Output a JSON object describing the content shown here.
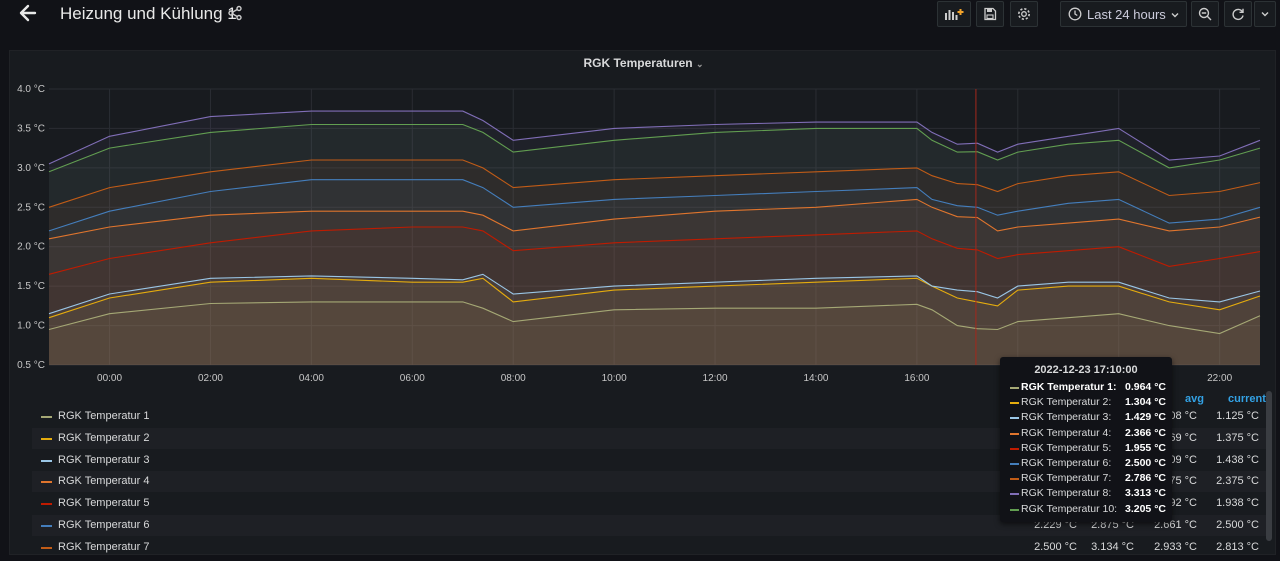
{
  "header": {
    "title": "Heizung und Kühlung 1",
    "time_range": "Last 24 hours"
  },
  "panel": {
    "title": "RGK Temperaturen"
  },
  "chart_data": {
    "type": "area",
    "y_unit": "°C",
    "yticks": [
      "4.0 °C",
      "3.5 °C",
      "3.0 °C",
      "2.5 °C",
      "2.0 °C",
      "1.5 °C",
      "1.0 °C",
      "0.5 °C"
    ],
    "ylim": [
      0.5,
      4.0
    ],
    "xticks": [
      "00:00",
      "02:00",
      "04:00",
      "06:00",
      "08:00",
      "10:00",
      "12:00",
      "14:00",
      "16:00",
      "18:00",
      "20:00",
      "22:00"
    ],
    "x_hours": [
      -1.2,
      0,
      2,
      4,
      6,
      7,
      7.4,
      8,
      10,
      12,
      14,
      16,
      16.3,
      16.8,
      17.2,
      17.6,
      18,
      19,
      20,
      21,
      22,
      22.8
    ],
    "series": [
      {
        "name": "RGK Temperatur 1",
        "color": "#a5a875",
        "values": [
          0.95,
          1.15,
          1.28,
          1.3,
          1.3,
          1.3,
          1.22,
          1.05,
          1.2,
          1.22,
          1.22,
          1.27,
          1.2,
          1.0,
          0.96,
          0.95,
          1.05,
          1.1,
          1.15,
          1.0,
          0.9,
          1.125
        ]
      },
      {
        "name": "RGK Temperatur 2",
        "color": "#e5ac0e",
        "values": [
          1.1,
          1.35,
          1.55,
          1.6,
          1.55,
          1.55,
          1.6,
          1.3,
          1.45,
          1.5,
          1.55,
          1.6,
          1.5,
          1.35,
          1.3,
          1.25,
          1.45,
          1.5,
          1.5,
          1.3,
          1.2,
          1.375
        ]
      },
      {
        "name": "RGK Temperatur 3",
        "color": "#9ac6e6",
        "values": [
          1.15,
          1.4,
          1.6,
          1.63,
          1.6,
          1.58,
          1.65,
          1.4,
          1.5,
          1.55,
          1.6,
          1.63,
          1.5,
          1.45,
          1.43,
          1.35,
          1.5,
          1.55,
          1.55,
          1.35,
          1.3,
          1.438
        ]
      },
      {
        "name": "RGK Temperatur 4",
        "color": "#e0752d",
        "values": [
          2.1,
          2.25,
          2.4,
          2.45,
          2.45,
          2.45,
          2.4,
          2.2,
          2.35,
          2.45,
          2.5,
          2.6,
          2.5,
          2.38,
          2.37,
          2.2,
          2.25,
          2.3,
          2.35,
          2.2,
          2.25,
          2.375
        ]
      },
      {
        "name": "RGK Temperatur 5",
        "color": "#bf1b00",
        "values": [
          1.65,
          1.85,
          2.05,
          2.2,
          2.25,
          2.25,
          2.2,
          1.95,
          2.05,
          2.1,
          2.15,
          2.2,
          2.1,
          1.98,
          1.96,
          1.85,
          1.9,
          1.95,
          2.0,
          1.75,
          1.85,
          1.938
        ]
      },
      {
        "name": "RGK Temperatur 6",
        "color": "#447ebc",
        "values": [
          2.2,
          2.45,
          2.7,
          2.85,
          2.85,
          2.85,
          2.75,
          2.5,
          2.6,
          2.65,
          2.7,
          2.75,
          2.6,
          2.52,
          2.5,
          2.4,
          2.45,
          2.55,
          2.6,
          2.3,
          2.35,
          2.5
        ]
      },
      {
        "name": "RGK Temperatur 7",
        "color": "#c15c17",
        "values": [
          2.5,
          2.75,
          2.95,
          3.1,
          3.1,
          3.1,
          3.0,
          2.75,
          2.85,
          2.9,
          2.95,
          3.0,
          2.9,
          2.8,
          2.786,
          2.7,
          2.8,
          2.9,
          2.95,
          2.65,
          2.7,
          2.813
        ]
      },
      {
        "name": "RGK Temperatur 8",
        "color": "#806eb7",
        "values": [
          3.05,
          3.4,
          3.65,
          3.72,
          3.72,
          3.72,
          3.6,
          3.35,
          3.5,
          3.55,
          3.58,
          3.58,
          3.45,
          3.3,
          3.313,
          3.2,
          3.3,
          3.4,
          3.5,
          3.1,
          3.15,
          3.35
        ]
      },
      {
        "name": "RGK Temperatur 10",
        "color": "#629e51",
        "values": [
          2.95,
          3.25,
          3.45,
          3.55,
          3.55,
          3.55,
          3.45,
          3.2,
          3.35,
          3.45,
          3.5,
          3.5,
          3.35,
          3.2,
          3.205,
          3.1,
          3.2,
          3.3,
          3.35,
          3.0,
          3.1,
          3.25
        ]
      }
    ]
  },
  "legend": {
    "headers": {
      "avg": "avg",
      "current": "current"
    },
    "rows": [
      {
        "name": "RGK Temperatur 1",
        "color": "#a5a875",
        "avg": "208 °C",
        "current": "1.125 °C"
      },
      {
        "name": "RGK Temperatur 2",
        "color": "#e5ac0e",
        "avg": "469 °C",
        "current": "1.375 °C"
      },
      {
        "name": "RGK Temperatur 3",
        "color": "#9ac6e6",
        "avg": "509 °C",
        "current": "1.438 °C"
      },
      {
        "name": "RGK Temperatur 4",
        "color": "#e0752d",
        "avg": "475 °C",
        "current": "2.375 °C"
      },
      {
        "name": "RGK Temperatur 5",
        "color": "#bf1b00",
        "avg": "092 °C",
        "current": "1.938 °C"
      },
      {
        "name": "RGK Temperatur 6",
        "color": "#447ebc",
        "min": "2.229 °C",
        "max": "2.875 °C",
        "avg": "2.661 °C",
        "current": "2.500 °C"
      },
      {
        "name": "RGK Temperatur 7",
        "color": "#c15c17",
        "min": "2.500 °C",
        "max": "3.134 °C",
        "avg": "2.933 °C",
        "current": "2.813 °C"
      }
    ]
  },
  "tooltip": {
    "time": "2022-12-23 17:10:00",
    "items": [
      {
        "name": "RGK Temperatur 1:",
        "value": "0.964 °C",
        "color": "#a5a875"
      },
      {
        "name": "RGK Temperatur 2:",
        "value": "1.304 °C",
        "color": "#e5ac0e"
      },
      {
        "name": "RGK Temperatur 3:",
        "value": "1.429 °C",
        "color": "#9ac6e6"
      },
      {
        "name": "RGK Temperatur 4:",
        "value": "2.366 °C",
        "color": "#e0752d"
      },
      {
        "name": "RGK Temperatur 5:",
        "value": "1.955 °C",
        "color": "#bf1b00"
      },
      {
        "name": "RGK Temperatur 6:",
        "value": "2.500 °C",
        "color": "#447ebc"
      },
      {
        "name": "RGK Temperatur 7:",
        "value": "2.786 °C",
        "color": "#c15c17"
      },
      {
        "name": "RGK Temperatur 8:",
        "value": "3.313 °C",
        "color": "#806eb7"
      },
      {
        "name": "RGK Temperatur 10:",
        "value": "3.205 °C",
        "color": "#629e51"
      }
    ]
  }
}
